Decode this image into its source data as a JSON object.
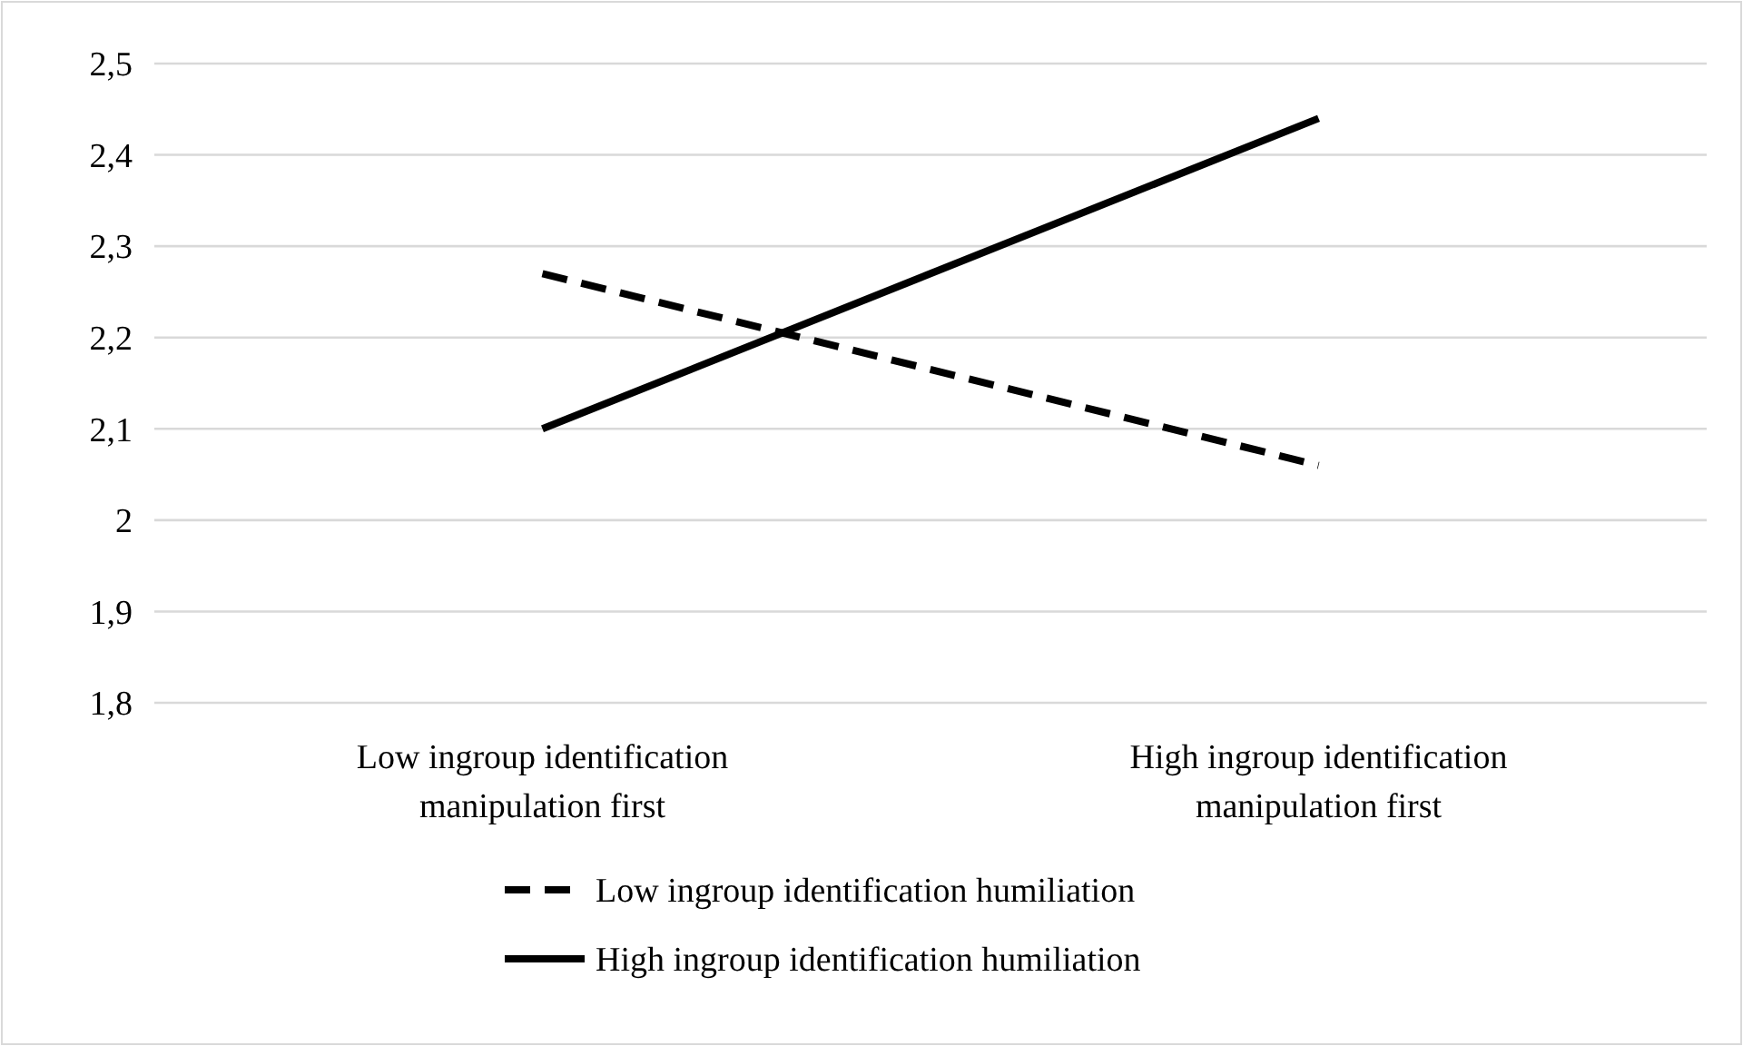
{
  "chart_data": {
    "type": "line",
    "categories": [
      "Low ingroup identification manipulation first",
      "High ingroup identification manipulation first"
    ],
    "series": [
      {
        "name": "Low ingroup identification humiliation",
        "color": "#000000",
        "values": [
          2.27,
          2.06
        ],
        "line_style": "dashed"
      },
      {
        "name": "High ingroup identification humiliation",
        "color": "#000000",
        "values": [
          2.1,
          2.44
        ],
        "line_style": "solid"
      }
    ],
    "ylim": [
      1.8,
      2.5
    ],
    "yticks": [
      {
        "value": 1.8,
        "label": "1,8"
      },
      {
        "value": 1.9,
        "label": "1,9"
      },
      {
        "value": 2,
        "label": "2"
      },
      {
        "value": 2.1,
        "label": "2,1"
      },
      {
        "value": 2.2,
        "label": "2,2"
      },
      {
        "value": 2.3,
        "label": "2,3"
      },
      {
        "value": 2.4,
        "label": "2,4"
      },
      {
        "value": 2.5,
        "label": "2,5"
      }
    ],
    "grid": "y",
    "legend": "bottom",
    "marker": "none"
  }
}
